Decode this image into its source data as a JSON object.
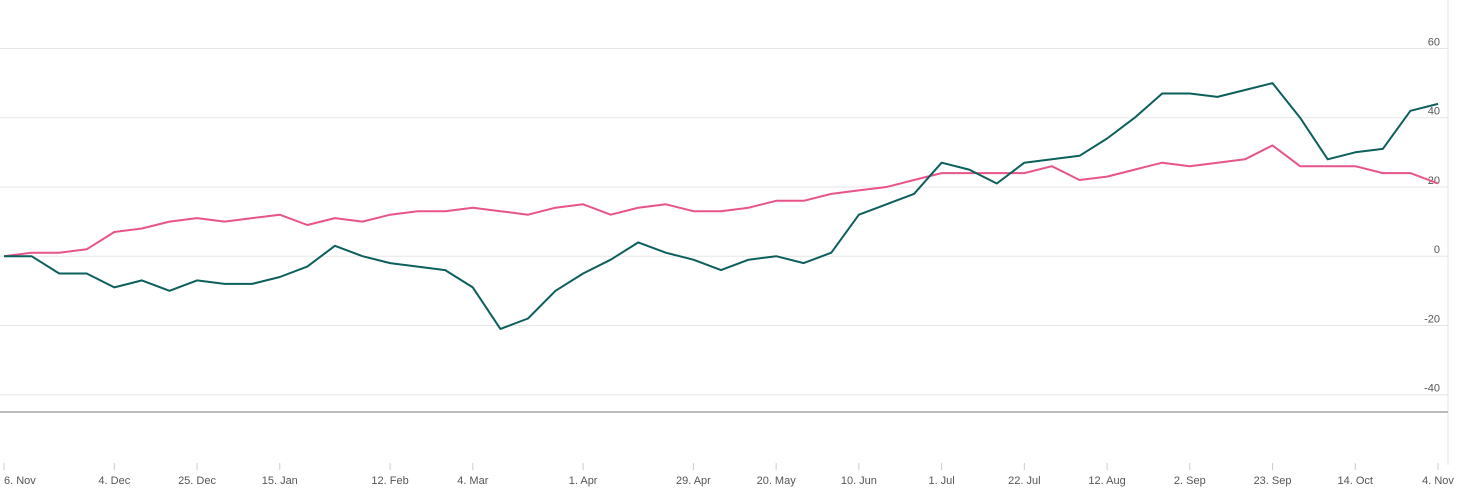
{
  "chart_data": {
    "type": "line",
    "categories": [
      "6. Nov",
      null,
      null,
      null,
      "4. Dec",
      null,
      null,
      "25. Dec",
      null,
      null,
      "15. Jan",
      null,
      null,
      null,
      "12. Feb",
      null,
      null,
      "4. Mar",
      null,
      null,
      null,
      "1. Apr",
      null,
      null,
      null,
      "29. Apr",
      null,
      null,
      "20. May",
      null,
      null,
      "10. Jun",
      null,
      null,
      "1. Jul",
      null,
      null,
      "22. Jul",
      null,
      null,
      "12. Aug",
      null,
      null,
      "2. Sep",
      null,
      null,
      "23. Sep",
      null,
      null,
      "14. Oct",
      null,
      null,
      "4. Nov"
    ],
    "series": [
      {
        "color": "#e8538a",
        "values": [
          0,
          1,
          1,
          2,
          7,
          8,
          10,
          11,
          10,
          11,
          12,
          9,
          11,
          10,
          12,
          13,
          13,
          14,
          13,
          12,
          14,
          15,
          12,
          14,
          15,
          13,
          13,
          14,
          16,
          16,
          18,
          19,
          20,
          22,
          24,
          24,
          24,
          24,
          26,
          22,
          23,
          25,
          27,
          26,
          27,
          28,
          32,
          26,
          26,
          26,
          24,
          24,
          21
        ]
      },
      {
        "color": "#0b5f5c",
        "values": [
          0,
          0,
          -5,
          -5,
          -9,
          -7,
          -10,
          -7,
          -8,
          -8,
          -6,
          -3,
          3,
          0,
          -2,
          -3,
          -4,
          -9,
          -21,
          -18,
          -10,
          -5,
          -1,
          4,
          1,
          -1,
          -4,
          -1,
          0,
          -2,
          1,
          12,
          15,
          18,
          27,
          25,
          21,
          27,
          28,
          29,
          34,
          40,
          47,
          47,
          46,
          48,
          50,
          40,
          28,
          30,
          31,
          42,
          44
        ]
      }
    ],
    "ylim": [
      -45,
      74
    ],
    "yticks": [
      -40,
      -20,
      0,
      20,
      40,
      60
    ],
    "grid": true
  }
}
